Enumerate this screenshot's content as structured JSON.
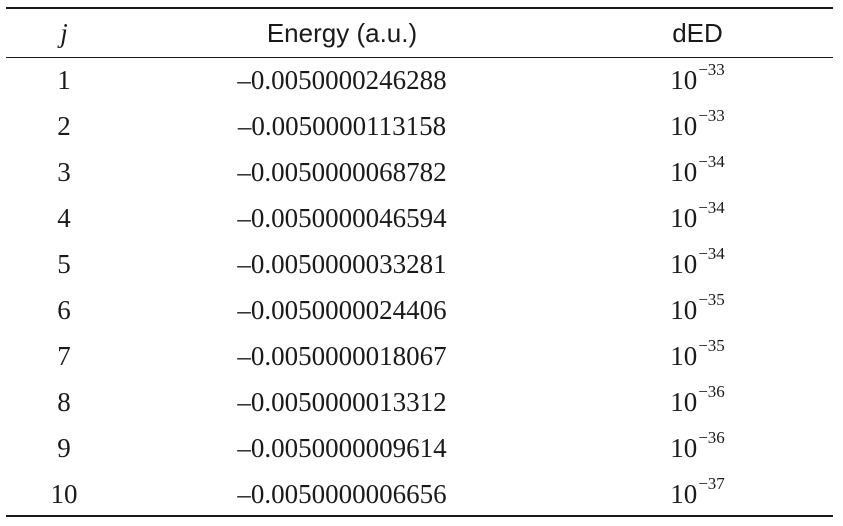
{
  "table": {
    "headers": {
      "j": "j",
      "energy": "Energy (a.u.)",
      "ded": "dED"
    },
    "rows": [
      {
        "j": "1",
        "energy": "–0.0050000246288",
        "ded_base": "10",
        "ded_exp": "−33"
      },
      {
        "j": "2",
        "energy": "–0.0050000113158",
        "ded_base": "10",
        "ded_exp": "−33"
      },
      {
        "j": "3",
        "energy": "–0.0050000068782",
        "ded_base": "10",
        "ded_exp": "−34"
      },
      {
        "j": "4",
        "energy": "–0.0050000046594",
        "ded_base": "10",
        "ded_exp": "−34"
      },
      {
        "j": "5",
        "energy": "–0.0050000033281",
        "ded_base": "10",
        "ded_exp": "−34"
      },
      {
        "j": "6",
        "energy": "–0.0050000024406",
        "ded_base": "10",
        "ded_exp": "−35"
      },
      {
        "j": "7",
        "energy": "–0.0050000018067",
        "ded_base": "10",
        "ded_exp": "−35"
      },
      {
        "j": "8",
        "energy": "–0.0050000013312",
        "ded_base": "10",
        "ded_exp": "−36"
      },
      {
        "j": "9",
        "energy": "–0.0050000009614",
        "ded_base": "10",
        "ded_exp": "−36"
      },
      {
        "j": "10",
        "energy": "–0.0050000006656",
        "ded_base": "10",
        "ded_exp": "−37"
      }
    ]
  }
}
